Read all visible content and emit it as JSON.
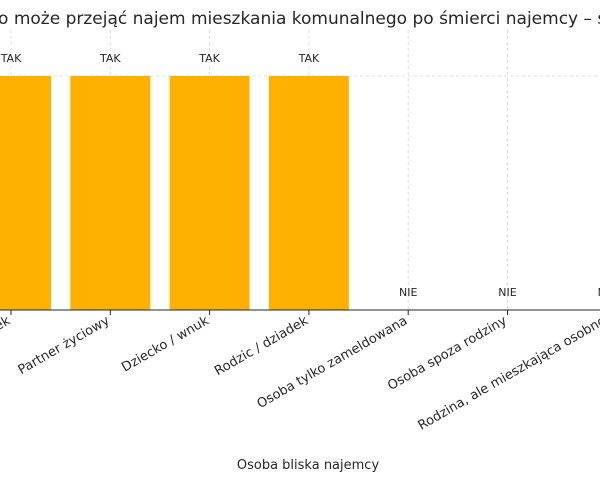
{
  "chart_data": {
    "type": "bar",
    "title": "Kto może przejąć najem mieszkania komunalnego po śmierci najemcy – skrót",
    "xlabel": "Osoba bliska najemcy",
    "ylabel": "",
    "categories": [
      "Małżonek",
      "Partner życiowy",
      "Dziecko / wnuk",
      "Rodzic / dziadek",
      "Osoba tylko zameldowana",
      "Osoba spoza rodziny",
      "Rodzina, ale mieszkająca osobno"
    ],
    "values": [
      1,
      1,
      1,
      1,
      0,
      0,
      0
    ],
    "data_labels": [
      "TAK",
      "TAK",
      "TAK",
      "TAK",
      "NIE",
      "NIE",
      "NIE"
    ],
    "ylim": [
      0,
      1.1
    ],
    "grid": true,
    "colors": {
      "bar": "#FFB000"
    }
  }
}
